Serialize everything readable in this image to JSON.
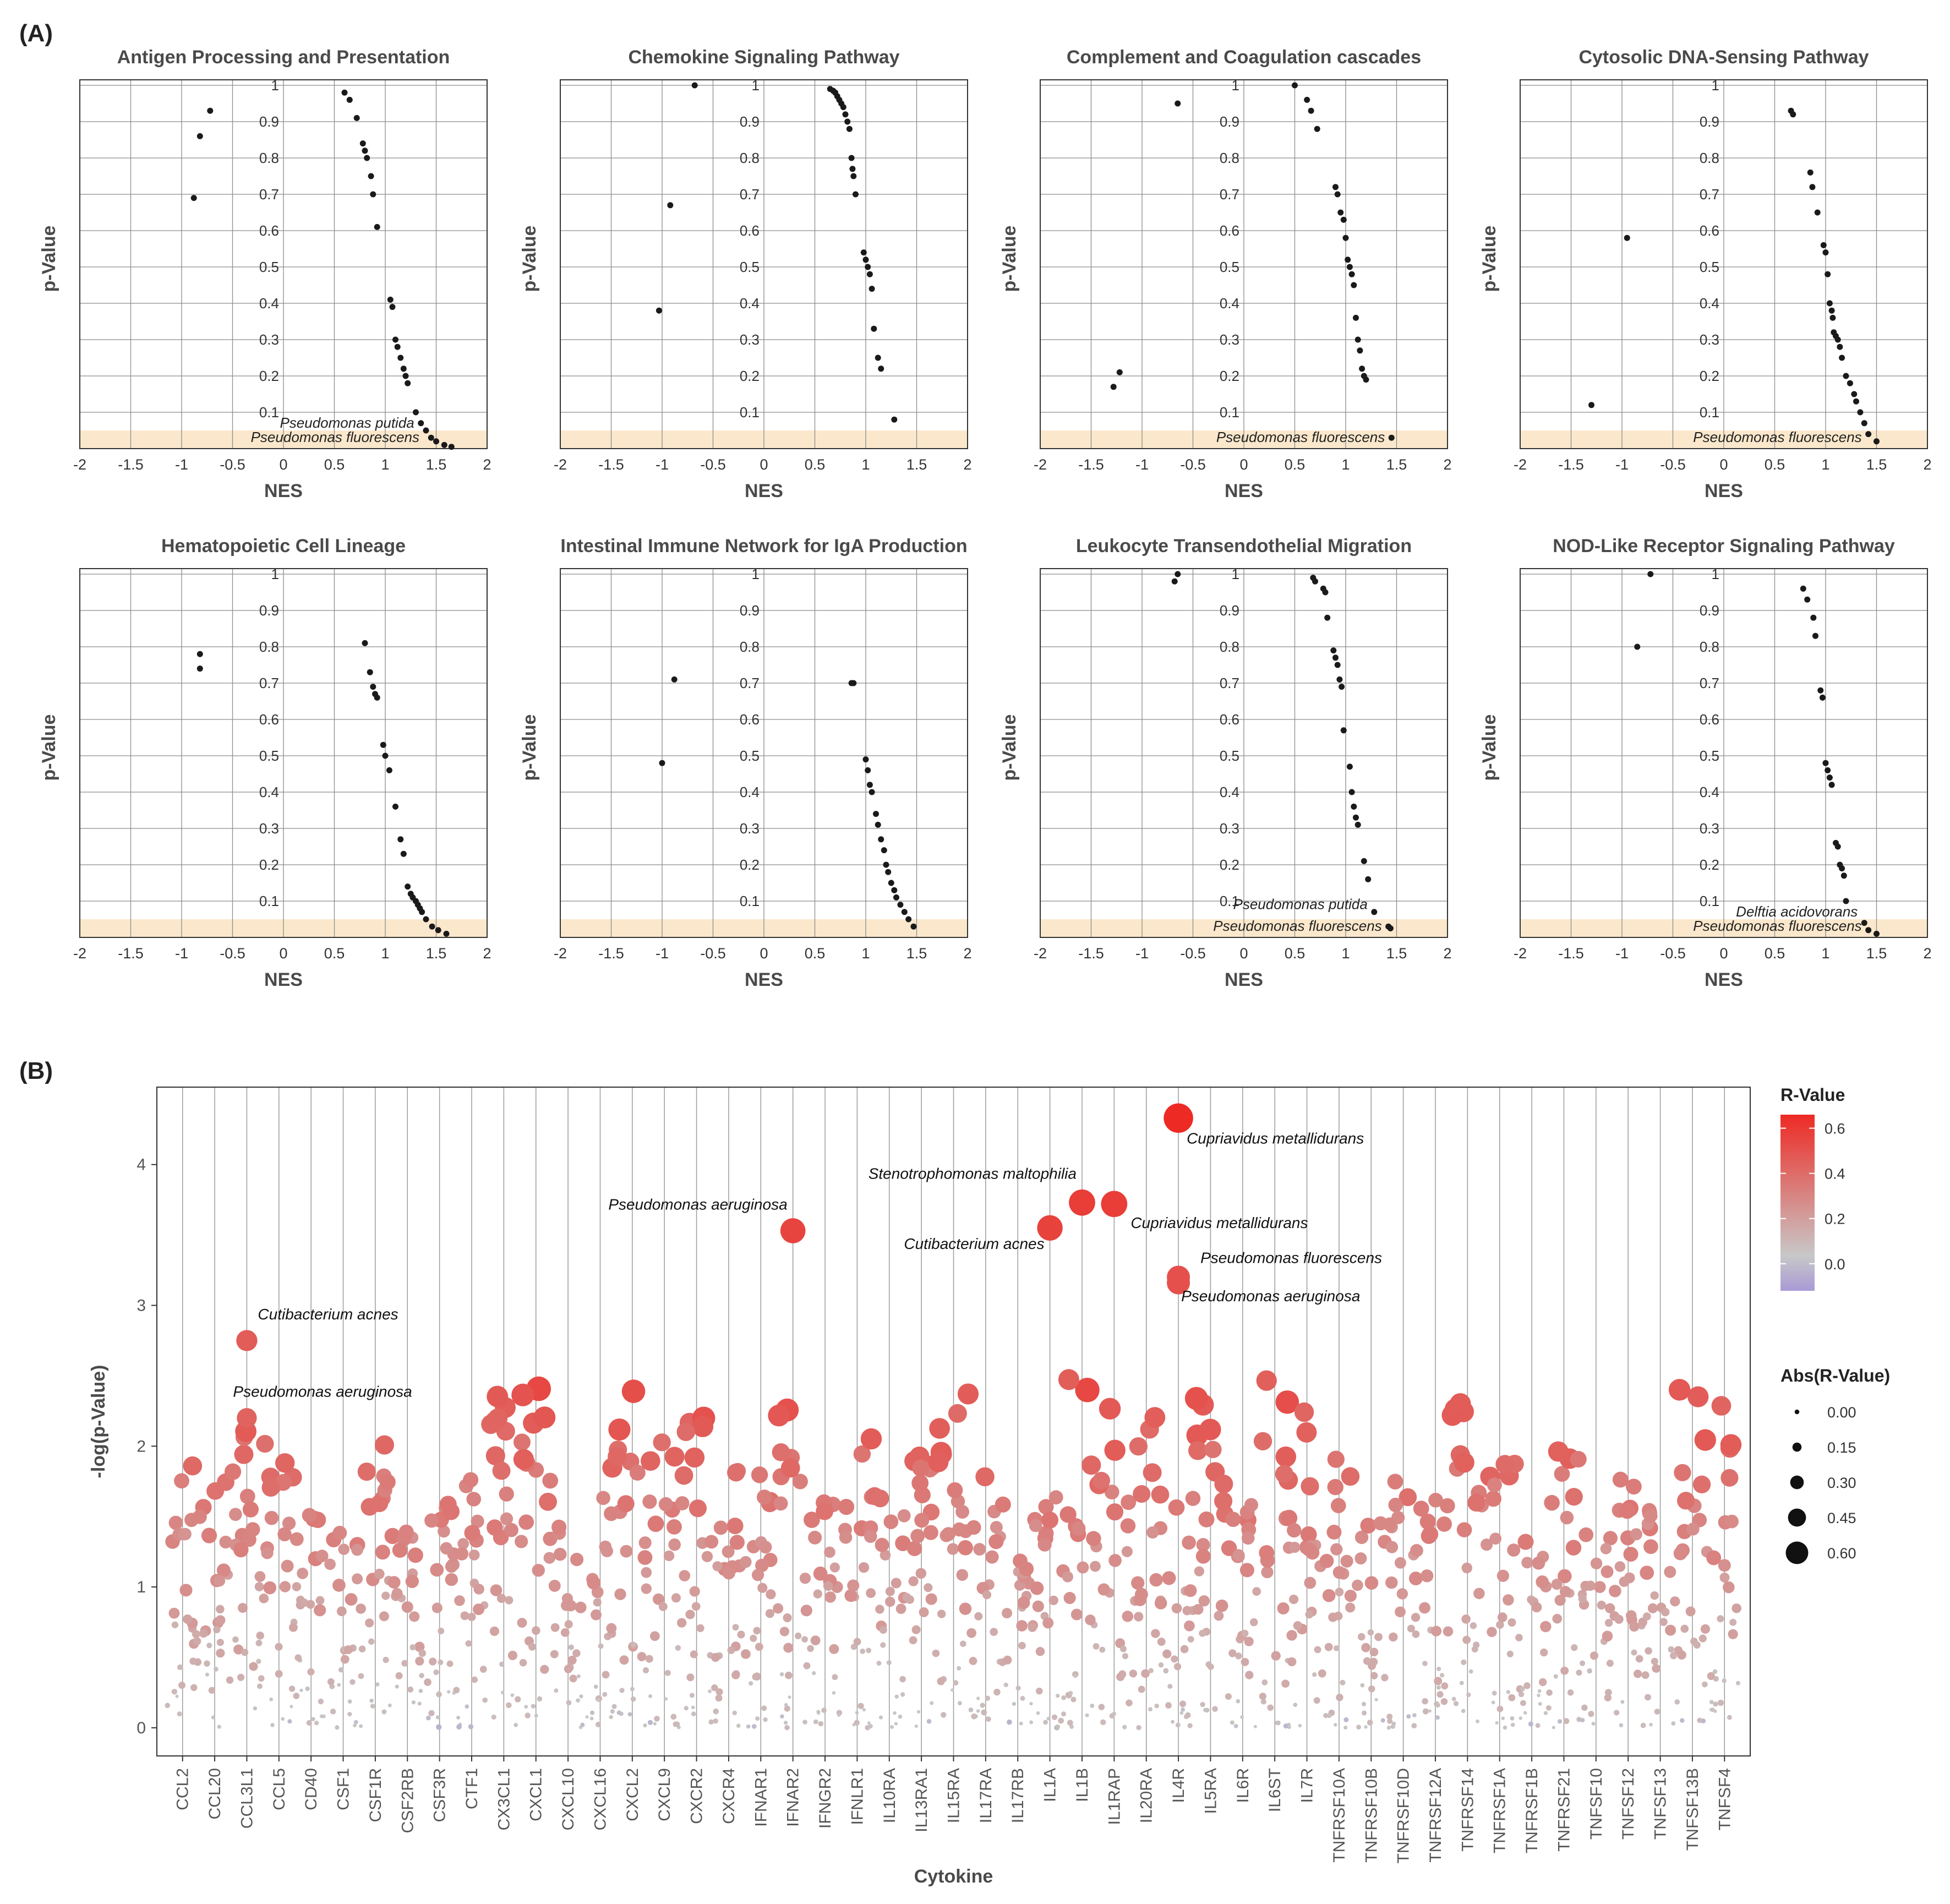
{
  "panel_labels": [
    "(A)",
    "(B)"
  ],
  "chart_data": [
    {
      "type": "scatter",
      "title": "Antigen Processing and Presentation",
      "xlabel": "NES",
      "ylabel": "p-Value",
      "xlim": [
        -2,
        2
      ],
      "ylim": [
        0,
        1
      ],
      "xticks": [
        "-2",
        "-1.5",
        "-1",
        "-0.5",
        "0",
        "0.5",
        "1",
        "1.5",
        "2"
      ],
      "yticks": [
        "0.1",
        "0.2",
        "0.3",
        "0.4",
        "0.5",
        "0.6",
        "0.7",
        "0.8",
        "0.9",
        "1"
      ],
      "significance_band": 0.05,
      "points": [
        [
          -0.72,
          0.93
        ],
        [
          -0.82,
          0.86
        ],
        [
          -0.88,
          0.69
        ],
        [
          0.6,
          0.98
        ],
        [
          0.65,
          0.96
        ],
        [
          0.72,
          0.91
        ],
        [
          0.78,
          0.84
        ],
        [
          0.8,
          0.82
        ],
        [
          0.82,
          0.8
        ],
        [
          0.86,
          0.75
        ],
        [
          0.88,
          0.7
        ],
        [
          0.92,
          0.61
        ],
        [
          1.05,
          0.41
        ],
        [
          1.07,
          0.39
        ],
        [
          1.1,
          0.3
        ],
        [
          1.12,
          0.28
        ],
        [
          1.15,
          0.25
        ],
        [
          1.18,
          0.22
        ],
        [
          1.2,
          0.2
        ],
        [
          1.22,
          0.18
        ],
        [
          1.3,
          0.1
        ],
        [
          1.35,
          0.07
        ],
        [
          1.4,
          0.05
        ],
        [
          1.45,
          0.03
        ],
        [
          1.5,
          0.02
        ],
        [
          1.58,
          0.01
        ],
        [
          1.65,
          0.005
        ]
      ],
      "annotations": [
        {
          "text": "Pseudomonas putida",
          "x": 1.35,
          "y": 0.07
        },
        {
          "text": "Pseudomonas fluorescens",
          "x": 1.4,
          "y": 0.03
        }
      ]
    },
    {
      "type": "scatter",
      "title": "Chemokine Signaling Pathway",
      "xlabel": "NES",
      "ylabel": "p-Value",
      "xlim": [
        -2,
        2
      ],
      "ylim": [
        0,
        1
      ],
      "xticks": [
        "-2",
        "-1.5",
        "-1",
        "-0.5",
        "0",
        "0.5",
        "1",
        "1.5",
        "2"
      ],
      "yticks": [
        "0.1",
        "0.2",
        "0.3",
        "0.4",
        "0.5",
        "0.6",
        "0.7",
        "0.8",
        "0.9",
        "1"
      ],
      "significance_band": 0.05,
      "points": [
        [
          -0.68,
          1.0
        ],
        [
          -0.92,
          0.67
        ],
        [
          -1.03,
          0.38
        ],
        [
          0.65,
          0.99
        ],
        [
          0.68,
          0.985
        ],
        [
          0.7,
          0.98
        ],
        [
          0.72,
          0.97
        ],
        [
          0.74,
          0.96
        ],
        [
          0.76,
          0.95
        ],
        [
          0.78,
          0.94
        ],
        [
          0.8,
          0.92
        ],
        [
          0.82,
          0.9
        ],
        [
          0.84,
          0.88
        ],
        [
          0.86,
          0.8
        ],
        [
          0.87,
          0.77
        ],
        [
          0.88,
          0.75
        ],
        [
          0.9,
          0.7
        ],
        [
          0.98,
          0.54
        ],
        [
          1.0,
          0.52
        ],
        [
          1.02,
          0.5
        ],
        [
          1.04,
          0.48
        ],
        [
          1.06,
          0.44
        ],
        [
          1.08,
          0.33
        ],
        [
          1.12,
          0.25
        ],
        [
          1.15,
          0.22
        ],
        [
          1.28,
          0.08
        ]
      ],
      "annotations": []
    },
    {
      "type": "scatter",
      "title": "Complement and Coagulation cascades",
      "xlabel": "NES",
      "ylabel": "p-Value",
      "xlim": [
        -2,
        2
      ],
      "ylim": [
        0,
        1
      ],
      "xticks": [
        "-2",
        "-1.5",
        "-1",
        "-0.5",
        "0",
        "0.5",
        "1",
        "1.5",
        "2"
      ],
      "yticks": [
        "0.1",
        "0.2",
        "0.3",
        "0.4",
        "0.5",
        "0.6",
        "0.7",
        "0.8",
        "0.9",
        "1"
      ],
      "significance_band": 0.05,
      "points": [
        [
          -0.65,
          0.95
        ],
        [
          -1.22,
          0.21
        ],
        [
          -1.28,
          0.17
        ],
        [
          0.5,
          1.0
        ],
        [
          0.62,
          0.96
        ],
        [
          0.66,
          0.93
        ],
        [
          0.72,
          0.88
        ],
        [
          0.9,
          0.72
        ],
        [
          0.92,
          0.7
        ],
        [
          0.95,
          0.65
        ],
        [
          0.98,
          0.63
        ],
        [
          1.0,
          0.58
        ],
        [
          1.02,
          0.52
        ],
        [
          1.04,
          0.5
        ],
        [
          1.06,
          0.48
        ],
        [
          1.08,
          0.45
        ],
        [
          1.1,
          0.36
        ],
        [
          1.12,
          0.3
        ],
        [
          1.14,
          0.27
        ],
        [
          1.16,
          0.22
        ],
        [
          1.18,
          0.2
        ],
        [
          1.2,
          0.19
        ],
        [
          1.45,
          0.03
        ]
      ],
      "annotations": [
        {
          "text": "Pseudomonas fluorescens",
          "x": 1.45,
          "y": 0.03
        }
      ]
    },
    {
      "type": "scatter",
      "title": "Cytosolic DNA-Sensing Pathway",
      "xlabel": "NES",
      "ylabel": "p-Value",
      "xlim": [
        -2,
        2
      ],
      "ylim": [
        0,
        1
      ],
      "xticks": [
        "-2",
        "-1.5",
        "-1",
        "-0.5",
        "0",
        "0.5",
        "1",
        "1.5",
        "2"
      ],
      "yticks": [
        "0.1",
        "0.2",
        "0.3",
        "0.4",
        "0.5",
        "0.6",
        "0.7",
        "0.8",
        "0.9",
        "1"
      ],
      "significance_band": 0.05,
      "points": [
        [
          -0.95,
          0.58
        ],
        [
          -1.3,
          0.12
        ],
        [
          0.66,
          0.93
        ],
        [
          0.68,
          0.92
        ],
        [
          0.85,
          0.76
        ],
        [
          0.87,
          0.72
        ],
        [
          0.92,
          0.65
        ],
        [
          0.98,
          0.56
        ],
        [
          1.0,
          0.54
        ],
        [
          1.02,
          0.48
        ],
        [
          1.04,
          0.4
        ],
        [
          1.06,
          0.38
        ],
        [
          1.07,
          0.36
        ],
        [
          1.08,
          0.32
        ],
        [
          1.1,
          0.31
        ],
        [
          1.12,
          0.3
        ],
        [
          1.14,
          0.28
        ],
        [
          1.16,
          0.25
        ],
        [
          1.2,
          0.2
        ],
        [
          1.24,
          0.18
        ],
        [
          1.28,
          0.15
        ],
        [
          1.3,
          0.13
        ],
        [
          1.34,
          0.1
        ],
        [
          1.38,
          0.07
        ],
        [
          1.42,
          0.04
        ],
        [
          1.5,
          0.02
        ]
      ],
      "annotations": [
        {
          "text": "Pseudomonas fluorescens",
          "x": 1.42,
          "y": 0.03
        }
      ]
    },
    {
      "type": "scatter",
      "title": "Hematopoietic Cell Lineage",
      "xlabel": "NES",
      "ylabel": "p-Value",
      "xlim": [
        -2,
        2
      ],
      "ylim": [
        0,
        1
      ],
      "xticks": [
        "-2",
        "-1.5",
        "-1",
        "-0.5",
        "0",
        "0.5",
        "1",
        "1.5",
        "2"
      ],
      "yticks": [
        "0.1",
        "0.2",
        "0.3",
        "0.4",
        "0.5",
        "0.6",
        "0.7",
        "0.8",
        "0.9",
        "1"
      ],
      "significance_band": 0.05,
      "points": [
        [
          -0.82,
          0.78
        ],
        [
          -0.82,
          0.74
        ],
        [
          0.8,
          0.81
        ],
        [
          0.85,
          0.73
        ],
        [
          0.88,
          0.69
        ],
        [
          0.9,
          0.67
        ],
        [
          0.92,
          0.66
        ],
        [
          0.98,
          0.53
        ],
        [
          1.0,
          0.5
        ],
        [
          1.04,
          0.46
        ],
        [
          1.1,
          0.36
        ],
        [
          1.15,
          0.27
        ],
        [
          1.18,
          0.23
        ],
        [
          1.22,
          0.14
        ],
        [
          1.25,
          0.12
        ],
        [
          1.27,
          0.11
        ],
        [
          1.3,
          0.1
        ],
        [
          1.32,
          0.09
        ],
        [
          1.34,
          0.08
        ],
        [
          1.36,
          0.07
        ],
        [
          1.4,
          0.05
        ],
        [
          1.46,
          0.03
        ],
        [
          1.52,
          0.02
        ],
        [
          1.6,
          0.01
        ]
      ],
      "annotations": []
    },
    {
      "type": "scatter",
      "title": "Intestinal Immune Network for IgA Production",
      "xlabel": "NES",
      "ylabel": "p-Value",
      "xlim": [
        -2,
        2
      ],
      "ylim": [
        0,
        1
      ],
      "xticks": [
        "-2",
        "-1.5",
        "-1",
        "-0.5",
        "0",
        "0.5",
        "1",
        "1.5",
        "2"
      ],
      "yticks": [
        "0.1",
        "0.2",
        "0.3",
        "0.4",
        "0.5",
        "0.6",
        "0.7",
        "0.8",
        "0.9",
        "1"
      ],
      "significance_band": 0.05,
      "points": [
        [
          -0.88,
          0.71
        ],
        [
          -1.0,
          0.48
        ],
        [
          0.86,
          0.7
        ],
        [
          0.88,
          0.7
        ],
        [
          1.0,
          0.49
        ],
        [
          1.02,
          0.46
        ],
        [
          1.04,
          0.42
        ],
        [
          1.06,
          0.4
        ],
        [
          1.1,
          0.34
        ],
        [
          1.12,
          0.31
        ],
        [
          1.15,
          0.27
        ],
        [
          1.18,
          0.24
        ],
        [
          1.2,
          0.2
        ],
        [
          1.22,
          0.18
        ],
        [
          1.25,
          0.15
        ],
        [
          1.28,
          0.13
        ],
        [
          1.3,
          0.11
        ],
        [
          1.34,
          0.09
        ],
        [
          1.38,
          0.07
        ],
        [
          1.42,
          0.05
        ],
        [
          1.47,
          0.03
        ]
      ],
      "annotations": []
    },
    {
      "type": "scatter",
      "title": "Leukocyte Transendothelial Migration",
      "xlabel": "NES",
      "ylabel": "p-Value",
      "xlim": [
        -2,
        2
      ],
      "ylim": [
        0,
        1
      ],
      "xticks": [
        "-2",
        "-1.5",
        "-1",
        "-0.5",
        "0",
        "0.5",
        "1",
        "1.5",
        "2"
      ],
      "yticks": [
        "0.1",
        "0.2",
        "0.3",
        "0.4",
        "0.5",
        "0.6",
        "0.7",
        "0.8",
        "0.9",
        "1"
      ],
      "significance_band": 0.05,
      "points": [
        [
          -0.65,
          1.0
        ],
        [
          -0.68,
          0.98
        ],
        [
          0.68,
          0.99
        ],
        [
          0.7,
          0.98
        ],
        [
          0.78,
          0.96
        ],
        [
          0.8,
          0.95
        ],
        [
          0.82,
          0.88
        ],
        [
          0.88,
          0.79
        ],
        [
          0.9,
          0.77
        ],
        [
          0.92,
          0.75
        ],
        [
          0.94,
          0.71
        ],
        [
          0.96,
          0.69
        ],
        [
          0.98,
          0.57
        ],
        [
          1.04,
          0.47
        ],
        [
          1.06,
          0.4
        ],
        [
          1.08,
          0.36
        ],
        [
          1.1,
          0.33
        ],
        [
          1.12,
          0.31
        ],
        [
          1.18,
          0.21
        ],
        [
          1.22,
          0.16
        ],
        [
          1.28,
          0.07
        ],
        [
          1.42,
          0.03
        ],
        [
          1.44,
          0.025
        ]
      ],
      "annotations": [
        {
          "text": "Pseudomonas putida",
          "x": 1.28,
          "y": 0.09
        },
        {
          "text": "Pseudomonas fluorescens",
          "x": 1.42,
          "y": 0.03
        }
      ]
    },
    {
      "type": "scatter",
      "title": "NOD-Like Receptor Signaling Pathway",
      "xlabel": "NES",
      "ylabel": "p-Value",
      "xlim": [
        -2,
        2
      ],
      "ylim": [
        0,
        1
      ],
      "xticks": [
        "-2",
        "-1.5",
        "-1",
        "-0.5",
        "0",
        "0.5",
        "1",
        "1.5",
        "2"
      ],
      "yticks": [
        "0.1",
        "0.2",
        "0.3",
        "0.4",
        "0.5",
        "0.6",
        "0.7",
        "0.8",
        "0.9",
        "1"
      ],
      "significance_band": 0.05,
      "points": [
        [
          -0.72,
          1.0
        ],
        [
          -0.85,
          0.8
        ],
        [
          0.78,
          0.96
        ],
        [
          0.82,
          0.93
        ],
        [
          0.88,
          0.88
        ],
        [
          0.9,
          0.83
        ],
        [
          0.95,
          0.68
        ],
        [
          0.97,
          0.66
        ],
        [
          1.0,
          0.48
        ],
        [
          1.02,
          0.46
        ],
        [
          1.04,
          0.44
        ],
        [
          1.06,
          0.42
        ],
        [
          1.1,
          0.26
        ],
        [
          1.12,
          0.25
        ],
        [
          1.14,
          0.2
        ],
        [
          1.16,
          0.19
        ],
        [
          1.18,
          0.17
        ],
        [
          1.2,
          0.1
        ],
        [
          1.38,
          0.04
        ],
        [
          1.42,
          0.02
        ],
        [
          1.5,
          0.01
        ]
      ],
      "annotations": [
        {
          "text": "Delftia acidovorans",
          "x": 1.38,
          "y": 0.07
        },
        {
          "text": "Pseudomonas fluorescens",
          "x": 1.42,
          "y": 0.03
        }
      ]
    },
    {
      "type": "scatter",
      "xlabel": "Cytokine",
      "ylabel": "-log(p-Value)",
      "ylim": [
        -0.2,
        4.55
      ],
      "yticks": [
        "0",
        "1",
        "2",
        "3",
        "4"
      ],
      "categories": [
        "CCL2",
        "CCL20",
        "CCL3L1",
        "CCL5",
        "CD40",
        "CSF1",
        "CSF1R",
        "CSF2RB",
        "CSF3R",
        "CTF1",
        "CX3CL1",
        "CXCL1",
        "CXCL10",
        "CXCL16",
        "CXCL2",
        "CXCL9",
        "CXCR2",
        "CXCR4",
        "IFNAR1",
        "IFNAR2",
        "IFNGR2",
        "IFNLR1",
        "IL10RA",
        "IL13RA1",
        "IL15RA",
        "IL17RA",
        "IL17RB",
        "IL1A",
        "IL1B",
        "IL1RAP",
        "IL20RA",
        "IL4R",
        "IL5RA",
        "IL6R",
        "IL6ST",
        "IL7R",
        "TNFRSF10A",
        "TNFRSF10B",
        "TNFRSF10D",
        "TNFRSF12A",
        "TNFRSF14",
        "TNFRSF1A",
        "TNFRSF1B",
        "TNFRSF21",
        "TNFSF10",
        "TNFSF12",
        "TNFSF13",
        "TNFSF13B",
        "TNFSF4"
      ],
      "color_scale": {
        "title": "R-Value",
        "ticks": [
          "0.6",
          "0.4",
          "0.2",
          "0.0"
        ],
        "range": [
          -0.12,
          0.66
        ],
        "low": "#a99ad6",
        "mid": "#c8c8c8",
        "high": "#ee2a24"
      },
      "size_scale": {
        "title": "Abs(R-Value)",
        "ticks": [
          "0.00",
          "0.15",
          "0.30",
          "0.45",
          "0.60"
        ]
      },
      "highlights": [
        {
          "category": "CCL3L1",
          "y": 2.75,
          "r": 0.45
        },
        {
          "category": "CCL3L1",
          "y": 2.2,
          "r": 0.42
        },
        {
          "category": "IFNAR2",
          "y": 3.53,
          "r": 0.55
        },
        {
          "category": "IL1A",
          "y": 3.55,
          "r": 0.56
        },
        {
          "category": "IL1B",
          "y": 3.73,
          "r": 0.58
        },
        {
          "category": "IL1RAP",
          "y": 3.72,
          "r": 0.58
        },
        {
          "category": "IL4R",
          "y": 4.33,
          "r": 0.66
        },
        {
          "category": "IL4R",
          "y": 3.2,
          "r": 0.5
        },
        {
          "category": "IL4R",
          "y": 3.16,
          "r": 0.5
        }
      ],
      "annotations": [
        {
          "text": "Cutibacterium acnes",
          "category": "CCL3L1",
          "y": 2.9
        },
        {
          "text": "Pseudomonas aeruginosa",
          "category": "CCL3L1",
          "y": 2.35
        },
        {
          "text": "Pseudomonas aeruginosa",
          "category": "IFNAR2",
          "y": 3.68
        },
        {
          "text": "Stenotrophomonas maltophilia",
          "category": "IL1B",
          "y": 3.9
        },
        {
          "text": "Cutibacterium acnes",
          "category": "IL1A",
          "y": 3.4
        },
        {
          "text": "Cupriavidus metallidurans",
          "category": "IL1RAP",
          "y": 3.55
        },
        {
          "text": "Cupriavidus metallidurans",
          "category": "IL4R",
          "y": 4.15
        },
        {
          "text": "Pseudomonas fluorescens",
          "category": "IL4R",
          "y": 3.3
        },
        {
          "text": "Pseudomonas aeruginosa",
          "category": "IL4R",
          "y": 3.03
        }
      ]
    }
  ]
}
